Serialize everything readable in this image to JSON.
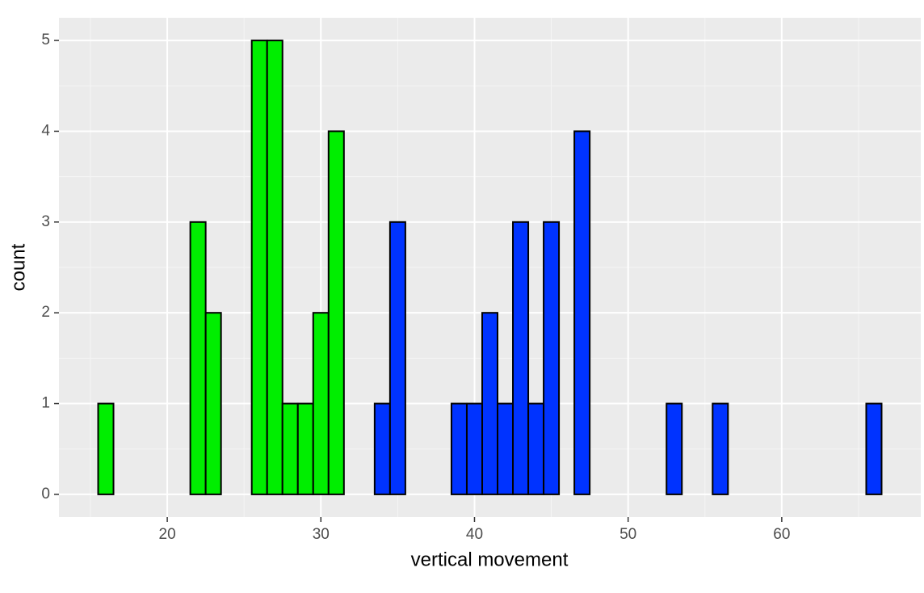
{
  "chart_data": {
    "type": "histogram",
    "x_label": "vertical movement",
    "y_label": "count",
    "series": [
      {
        "color": "#00ee00",
        "bins": [
          15.5,
          16.5,
          17.5,
          18.5,
          19.5,
          20.5,
          21.5,
          22.5,
          23.5,
          24.5,
          25.5,
          26.5,
          27.5,
          28.5,
          29.5,
          30.5,
          31.5
        ],
        "values": [
          1,
          0,
          0,
          0,
          0,
          0,
          3,
          2,
          0,
          0,
          5,
          5,
          1,
          1,
          2,
          4
        ]
      },
      {
        "color": "#0033ff",
        "bins": [
          31.5,
          32.5,
          33.5,
          34.5,
          35.5,
          36.5,
          37.5,
          38.5,
          39.5,
          40.5,
          41.5,
          42.5,
          43.5,
          44.5,
          45.5,
          46.5,
          47.5,
          48.5,
          49.5,
          50.5,
          51.5,
          52.5,
          53.5,
          54.5,
          55.5,
          56.5,
          57.5,
          58.5,
          59.5,
          60.5,
          61.5,
          62.5,
          63.5,
          64.5,
          65.5,
          66.5
        ],
        "values": [
          0,
          0,
          1,
          3,
          0,
          0,
          0,
          1,
          1,
          2,
          1,
          3,
          1,
          3,
          0,
          4,
          0,
          0,
          0,
          0,
          0,
          1,
          0,
          0,
          1,
          0,
          0,
          0,
          0,
          0,
          0,
          0,
          0,
          0,
          1
        ]
      }
    ],
    "xlim": [
      12.95,
      69.05
    ],
    "xticks": [
      20,
      30,
      40,
      50,
      60
    ],
    "ylim": [
      -0.25,
      5.25
    ],
    "yticks": [
      0,
      1,
      2,
      3,
      4,
      5
    ],
    "grid": true
  }
}
